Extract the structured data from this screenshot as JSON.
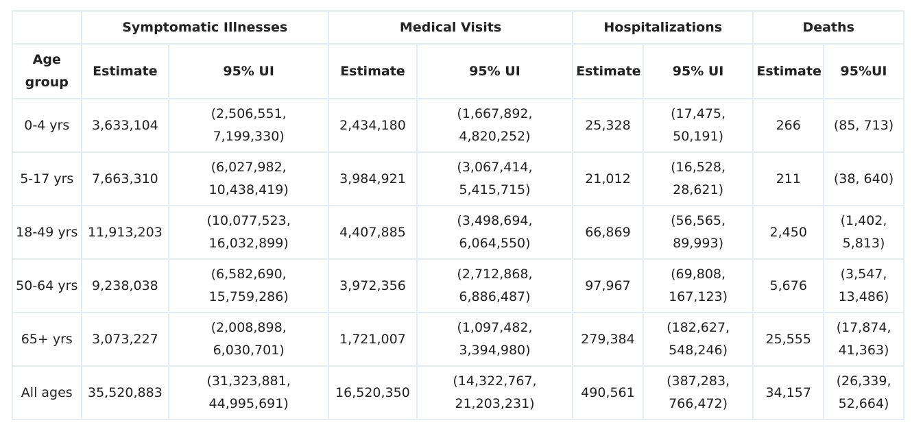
{
  "groups": {
    "symptomatic": "Symptomatic Illnesses",
    "medical": "Medical Visits",
    "hospital": "Hospitalizations",
    "deaths": "Deaths"
  },
  "subheaders": {
    "age_line1": "Age",
    "age_line2": "group",
    "estimate": "Estimate",
    "ui": "95% UI",
    "ui_deaths": "95%UI"
  },
  "rows": [
    {
      "age": "0-4 yrs",
      "sym_est": "3,633,104",
      "sym_ui_1": "(2,506,551,",
      "sym_ui_2": "7,199,330)",
      "med_est": "2,434,180",
      "med_ui_1": "(1,667,892,",
      "med_ui_2": "4,820,252)",
      "hos_est": "25,328",
      "hos_ui_1": "(17,475,",
      "hos_ui_2": "50,191)",
      "dea_est": "266",
      "dea_ui_1": "(85, 713)",
      "dea_ui_2": ""
    },
    {
      "age": "5-17 yrs",
      "sym_est": "7,663,310",
      "sym_ui_1": "(6,027,982,",
      "sym_ui_2": "10,438,419)",
      "med_est": "3,984,921",
      "med_ui_1": "(3,067,414,",
      "med_ui_2": "5,415,715)",
      "hos_est": "21,012",
      "hos_ui_1": "(16,528,",
      "hos_ui_2": "28,621)",
      "dea_est": "211",
      "dea_ui_1": "(38, 640)",
      "dea_ui_2": ""
    },
    {
      "age": "18-49 yrs",
      "sym_est": "11,913,203",
      "sym_ui_1": "(10,077,523,",
      "sym_ui_2": "16,032,899)",
      "med_est": "4,407,885",
      "med_ui_1": "(3,498,694,",
      "med_ui_2": "6,064,550)",
      "hos_est": "66,869",
      "hos_ui_1": "(56,565,",
      "hos_ui_2": "89,993)",
      "dea_est": "2,450",
      "dea_ui_1": "(1,402,",
      "dea_ui_2": "5,813)"
    },
    {
      "age": "50-64 yrs",
      "sym_est": "9,238,038",
      "sym_ui_1": "(6,582,690,",
      "sym_ui_2": "15,759,286)",
      "med_est": "3,972,356",
      "med_ui_1": "(2,712,868,",
      "med_ui_2": "6,886,487)",
      "hos_est": "97,967",
      "hos_ui_1": "(69,808,",
      "hos_ui_2": "167,123)",
      "dea_est": "5,676",
      "dea_ui_1": "(3,547,",
      "dea_ui_2": "13,486)"
    },
    {
      "age": "65+ yrs",
      "sym_est": "3,073,227",
      "sym_ui_1": "(2,008,898,",
      "sym_ui_2": "6,030,701)",
      "med_est": "1,721,007",
      "med_ui_1": "(1,097,482,",
      "med_ui_2": "3,394,980)",
      "hos_est": "279,384",
      "hos_ui_1": "(182,627,",
      "hos_ui_2": "548,246)",
      "dea_est": "25,555",
      "dea_ui_1": "(17,874,",
      "dea_ui_2": "41,363)"
    },
    {
      "age": "All ages",
      "sym_est": "35,520,883",
      "sym_ui_1": "(31,323,881,",
      "sym_ui_2": "44,995,691)",
      "med_est": "16,520,350",
      "med_ui_1": "(14,322,767,",
      "med_ui_2": "21,203,231)",
      "hos_est": "490,561",
      "hos_ui_1": "(387,283,",
      "hos_ui_2": "766,472)",
      "dea_est": "34,157",
      "dea_ui_1": "(26,339,",
      "dea_ui_2": "52,664)"
    }
  ]
}
